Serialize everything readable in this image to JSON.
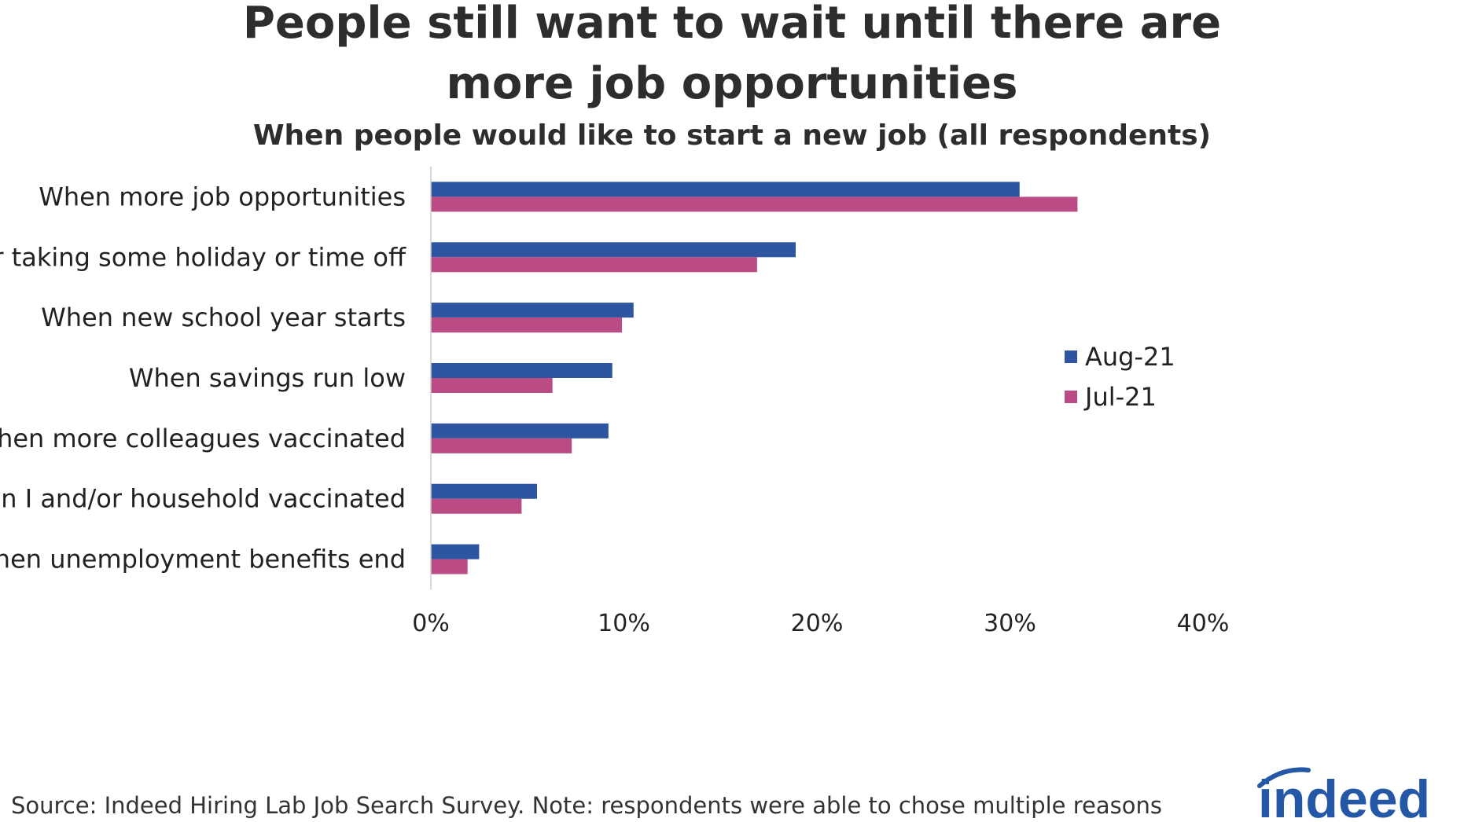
{
  "title": {
    "line1": "People still want to wait until there are",
    "line2": "more job opportunities",
    "subtitle": "When people would like to start a new job (all respondents)"
  },
  "source_note": "Source: Indeed Hiring Lab Job Search Survey. Note: respondents were able to chose multiple reasons",
  "logo_text": "indeed",
  "colors": {
    "aug": "#2e55a0",
    "jul": "#bb4b85",
    "axis": "#cccccc",
    "logo": "#2557a7"
  },
  "chart_data": {
    "type": "bar",
    "orientation": "horizontal",
    "title": "People still want to wait until there are more job opportunities",
    "subtitle": "When people would like to start a new job (all respondents)",
    "categories": [
      "When more job opportunities",
      "After taking some holiday or time off",
      "When new school year starts",
      "When savings run low",
      "When more colleagues vaccinated",
      "When I and/or household vaccinated",
      "When unemployment benefits end"
    ],
    "series": [
      {
        "name": "Aug-21",
        "values": [
          30.5,
          18.9,
          10.5,
          9.4,
          9.2,
          5.5,
          2.5
        ]
      },
      {
        "name": "Jul-21",
        "values": [
          33.5,
          16.9,
          9.9,
          6.3,
          7.3,
          4.7,
          1.9
        ]
      }
    ],
    "xlim": [
      0,
      40
    ],
    "xticks": [
      0,
      10,
      20,
      30,
      40
    ],
    "xtick_labels": [
      "0%",
      "10%",
      "20%",
      "30%",
      "40%"
    ],
    "grid": false,
    "legend_position": "right"
  }
}
